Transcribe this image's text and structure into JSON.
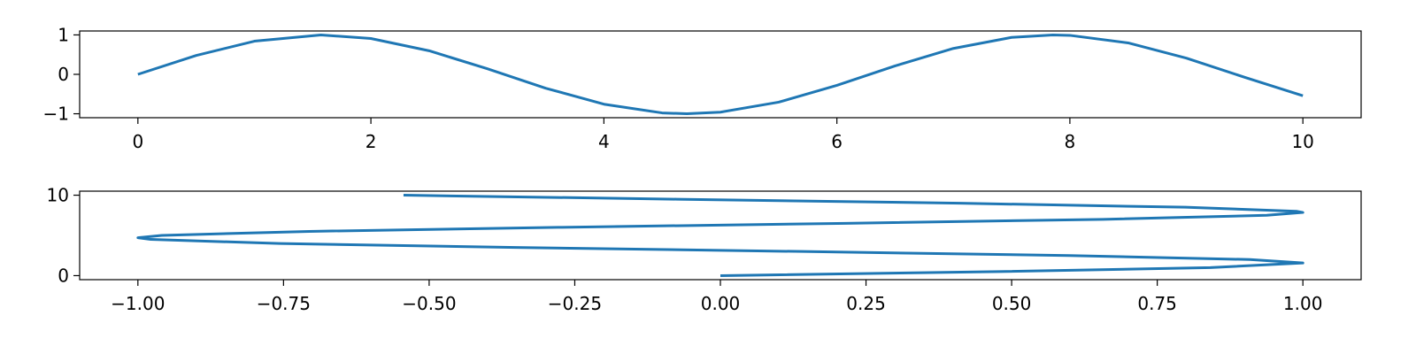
{
  "colors": {
    "series": "#1f77b4",
    "axes": "#000000",
    "background": "#ffffff"
  },
  "chart_data": [
    {
      "type": "line",
      "title": "",
      "xlabel": "",
      "ylabel": "",
      "function": "y = sin(x)",
      "x_range": [
        0,
        10
      ],
      "xlim": [
        -0.5,
        10.5
      ],
      "ylim": [
        -1.1,
        1.1
      ],
      "xticks": [
        0,
        2,
        4,
        6,
        8,
        10
      ],
      "xtick_labels": [
        "0",
        "2",
        "4",
        "6",
        "8",
        "10"
      ],
      "yticks": [
        -1,
        0,
        1
      ],
      "ytick_labels": [
        "−1",
        "0",
        "1"
      ],
      "grid": false,
      "legend": "none",
      "series": [
        {
          "x": [
            0,
            0.5,
            1,
            1.5708,
            2,
            2.5,
            3,
            3.5,
            4,
            4.5,
            4.7124,
            5,
            5.5,
            6,
            6.5,
            7,
            7.5,
            7.854,
            8,
            8.5,
            9,
            9.5,
            10
          ],
          "y": [
            0,
            0.479,
            0.841,
            1,
            0.909,
            0.598,
            0.141,
            -0.351,
            -0.757,
            -0.978,
            -1,
            -0.959,
            -0.706,
            -0.279,
            0.215,
            0.657,
            0.938,
            1,
            0.989,
            0.798,
            0.412,
            -0.075,
            -0.544
          ]
        }
      ]
    },
    {
      "type": "line",
      "title": "",
      "xlabel": "",
      "ylabel": "",
      "function": "x = sin(y)",
      "y_range": [
        0,
        10
      ],
      "xlim": [
        -1.1,
        1.1
      ],
      "ylim": [
        -0.5,
        10.5
      ],
      "xticks": [
        -1,
        -0.75,
        -0.5,
        -0.25,
        0,
        0.25,
        0.5,
        0.75,
        1
      ],
      "xtick_labels": [
        "−1.00",
        "−0.75",
        "−0.50",
        "−0.25",
        "0.00",
        "0.25",
        "0.50",
        "0.75",
        "1.00"
      ],
      "yticks": [
        0,
        10
      ],
      "ytick_labels": [
        "0",
        "10"
      ],
      "grid": false,
      "legend": "none",
      "series": [
        {
          "x": [
            0,
            0.479,
            0.841,
            1,
            0.909,
            0.598,
            0.141,
            -0.351,
            -0.757,
            -0.978,
            -1,
            -0.959,
            -0.706,
            -0.279,
            0.215,
            0.657,
            0.938,
            1,
            0.989,
            0.798,
            0.412,
            -0.075,
            -0.544
          ],
          "y": [
            0,
            0.5,
            1,
            1.5708,
            2,
            2.5,
            3,
            3.5,
            4,
            4.5,
            4.7124,
            5,
            5.5,
            6,
            6.5,
            7,
            7.5,
            7.854,
            8,
            8.5,
            9,
            9.5,
            10
          ]
        }
      ]
    }
  ]
}
